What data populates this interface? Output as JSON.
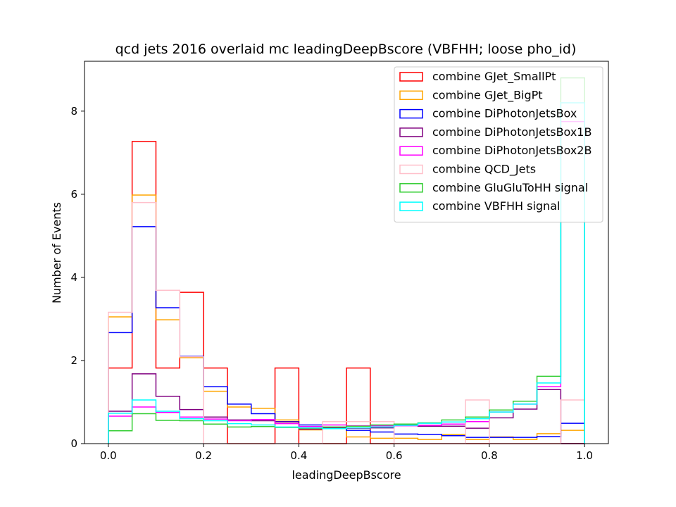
{
  "chart_data": {
    "type": "histogram-step",
    "title": "qcd jets 2016 overlaid mc leadingDeepBscore (VBFHH; loose pho_id)",
    "xlabel": "leadingDeepBscore",
    "ylabel": "Number of Events",
    "xlim": [
      -0.05,
      1.05
    ],
    "ylim": [
      0,
      9.2
    ],
    "xticks": [
      0.0,
      0.2,
      0.4,
      0.6,
      0.8,
      1.0
    ],
    "xtick_labels": [
      "0.0",
      "0.2",
      "0.4",
      "0.6",
      "0.8",
      "1.0"
    ],
    "yticks": [
      0,
      2,
      4,
      6,
      8
    ],
    "ytick_labels": [
      "0",
      "2",
      "4",
      "6",
      "8"
    ],
    "bin_edges": [
      0.0,
      0.05,
      0.1,
      0.15,
      0.2,
      0.25,
      0.3,
      0.35,
      0.4,
      0.45,
      0.5,
      0.55,
      0.6,
      0.65,
      0.7,
      0.75,
      0.8,
      0.85,
      0.9,
      0.95,
      1.0
    ],
    "legend_position": "upper right",
    "series": [
      {
        "name": "combine GJet_SmallPt",
        "color": "#ff0000",
        "values": [
          1.82,
          7.27,
          1.82,
          3.64,
          1.82,
          0,
          0,
          1.82,
          0,
          0,
          1.82,
          0,
          0,
          0,
          0,
          0,
          0,
          0,
          0,
          0
        ]
      },
      {
        "name": "combine GJet_BigPt",
        "color": "#ffa500",
        "values": [
          3.05,
          5.98,
          2.98,
          2.07,
          1.26,
          0.88,
          0.85,
          0.57,
          0.33,
          0.38,
          0.16,
          0.13,
          0.13,
          0.1,
          0.22,
          0.1,
          0.16,
          0.1,
          0.24,
          0.32
        ]
      },
      {
        "name": "combine DiPhotonJetsBox",
        "color": "#0000ff",
        "values": [
          2.67,
          5.22,
          3.27,
          2.1,
          1.37,
          0.95,
          0.72,
          0.53,
          0.45,
          0.39,
          0.32,
          0.28,
          0.23,
          0.22,
          0.19,
          0.15,
          0.15,
          0.15,
          0.17,
          0.49
        ]
      },
      {
        "name": "combine DiPhotonJetsBox1B",
        "color": "#800080",
        "values": [
          0.78,
          1.68,
          1.14,
          0.82,
          0.64,
          0.57,
          0.55,
          0.52,
          0.35,
          0.39,
          0.37,
          0.38,
          0.44,
          0.42,
          0.42,
          0.37,
          0.62,
          0.83,
          1.3,
          0.0
        ]
      },
      {
        "name": "combine DiPhotonJetsBox2B",
        "color": "#ff00ff",
        "values": [
          0.66,
          0.88,
          0.75,
          0.64,
          0.59,
          0.55,
          0.58,
          0.48,
          0.41,
          0.45,
          0.43,
          0.43,
          0.43,
          0.44,
          0.47,
          0.53,
          0.76,
          0.95,
          1.37,
          7.75
        ]
      },
      {
        "name": "combine QCD_Jets",
        "color": "#ffc0cb",
        "values": [
          3.16,
          5.8,
          3.69,
          2.09,
          0,
          0,
          0,
          0,
          0,
          0.53,
          0.53,
          0.53,
          0,
          0,
          0,
          1.05,
          0,
          0,
          0,
          1.05
        ]
      },
      {
        "name": "combine GluGluToHH signal",
        "color": "#32cd32",
        "values": [
          0.31,
          0.72,
          0.56,
          0.55,
          0.47,
          0.4,
          0.41,
          0.39,
          0.37,
          0.4,
          0.42,
          0.45,
          0.47,
          0.5,
          0.57,
          0.64,
          0.81,
          1.02,
          1.62,
          8.8
        ]
      },
      {
        "name": "combine VBFHH signal",
        "color": "#00ffff",
        "values": [
          0.73,
          1.05,
          0.78,
          0.6,
          0.55,
          0.48,
          0.45,
          0.4,
          0.38,
          0.36,
          0.38,
          0.4,
          0.44,
          0.49,
          0.52,
          0.6,
          0.76,
          0.95,
          1.46,
          8.2
        ]
      }
    ]
  }
}
